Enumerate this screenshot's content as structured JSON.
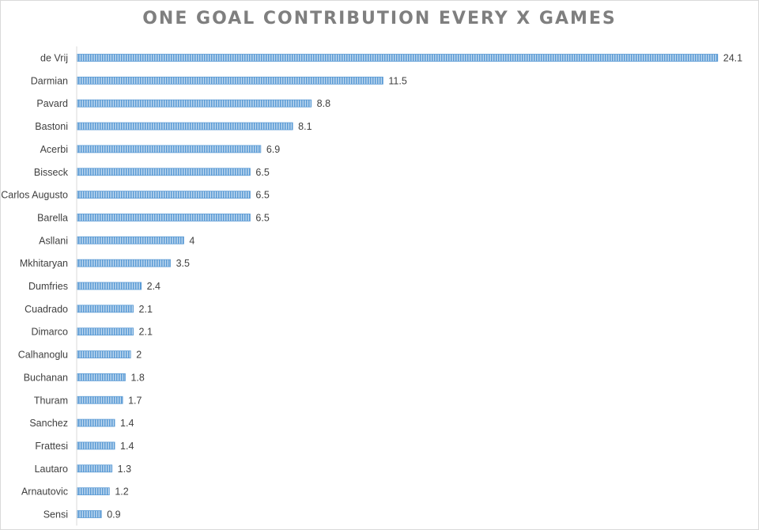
{
  "chart_data": {
    "type": "bar",
    "orientation": "horizontal",
    "title": "ONE GOAL CONTRIBUTION EVERY X GAMES",
    "xlabel": "",
    "ylabel": "",
    "grid": false,
    "legend": "none",
    "xlim": [
      0,
      25
    ],
    "bar_color": "#5b9bd5",
    "categories": [
      "de Vrij",
      "Darmian",
      "Pavard",
      "Bastoni",
      "Acerbi",
      "Bisseck",
      "Carlos Augusto",
      "Barella",
      "Asllani",
      "Mkhitaryan",
      "Dumfries",
      "Cuadrado",
      "Dimarco",
      "Calhanoglu",
      "Buchanan",
      "Thuram",
      "Sanchez",
      "Frattesi",
      "Lautaro",
      "Arnautovic",
      "Sensi"
    ],
    "values": [
      24.1,
      11.5,
      8.8,
      8.1,
      6.9,
      6.5,
      6.5,
      6.5,
      4,
      3.5,
      2.4,
      2.1,
      2.1,
      2,
      1.8,
      1.7,
      1.4,
      1.4,
      1.3,
      1.2,
      0.9
    ],
    "data_labels": [
      "24.1",
      "11.5",
      "8.8",
      "8.1",
      "6.9",
      "6.5",
      "6.5",
      "6.5",
      "4",
      "3.5",
      "2.4",
      "2.1",
      "2.1",
      "2",
      "1.8",
      "1.7",
      "1.4",
      "1.4",
      "1.3",
      "1.2",
      "0.9"
    ]
  }
}
